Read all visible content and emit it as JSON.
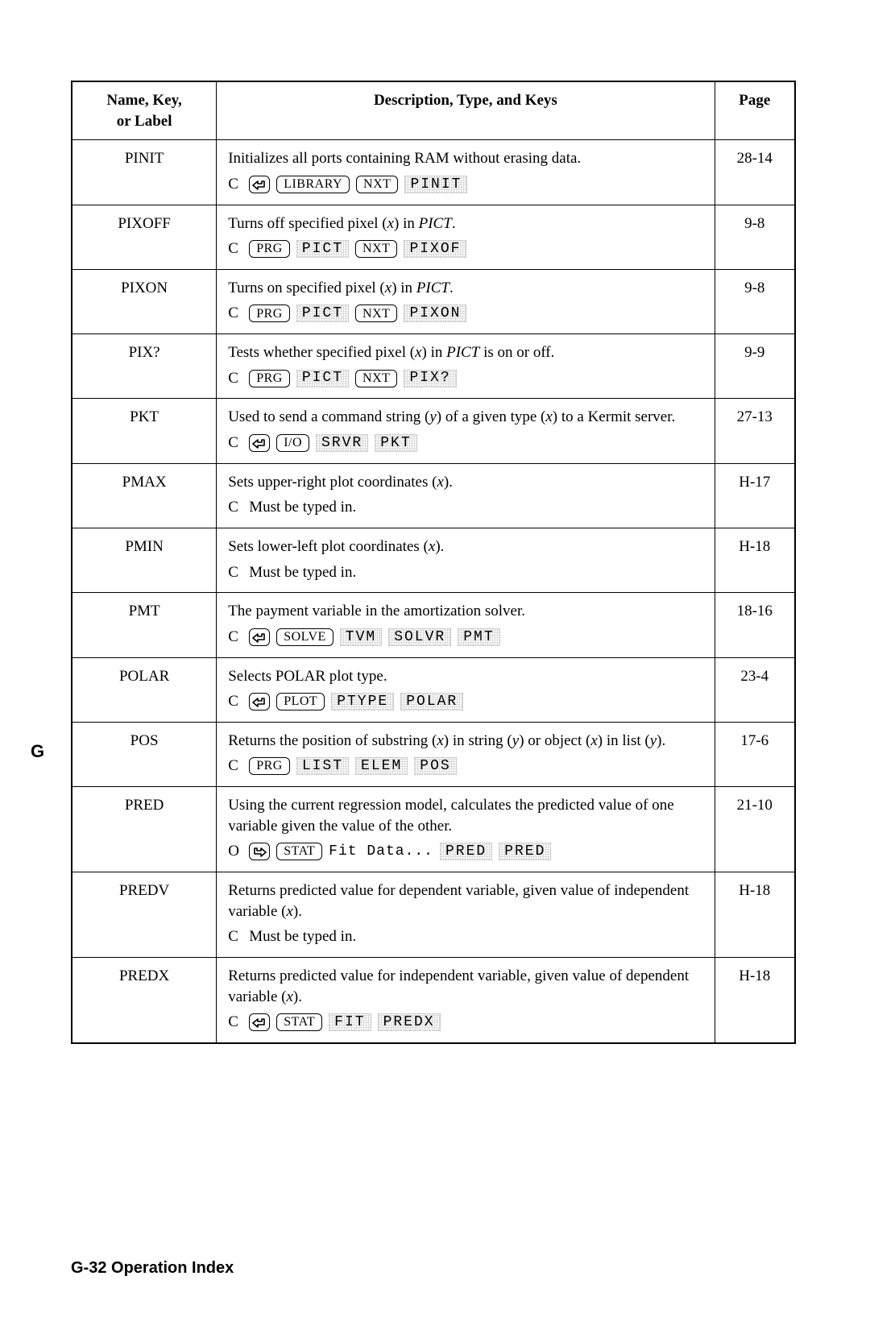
{
  "columns": {
    "name": "Name, Key,\nor Label",
    "desc": "Description, Type, and Keys",
    "page": "Page"
  },
  "side_tab": "G",
  "footer": "G-32   Operation Index",
  "rows": [
    {
      "name": "PINIT",
      "page": "28-14",
      "desc_segments": [
        {
          "t": "text",
          "v": "Initializes all ports containing RAM without erasing data."
        }
      ],
      "type": "C",
      "seq": [
        {
          "t": "shift",
          "dir": "left"
        },
        {
          "t": "hardkey",
          "v": "LIBRARY"
        },
        {
          "t": "hardkey",
          "v": "NXT"
        },
        {
          "t": "softkey",
          "v": "PINIT"
        }
      ]
    },
    {
      "name": "PIXOFF",
      "page": "9-8",
      "desc_segments": [
        {
          "t": "text",
          "v": "Turns off specified pixel ("
        },
        {
          "t": "ivar",
          "v": "x"
        },
        {
          "t": "text",
          "v": ") in "
        },
        {
          "t": "ital",
          "v": "PICT"
        },
        {
          "t": "text",
          "v": "."
        }
      ],
      "type": "C",
      "seq": [
        {
          "t": "hardkey",
          "v": "PRG"
        },
        {
          "t": "softkey",
          "v": "PICT"
        },
        {
          "t": "hardkey",
          "v": "NXT"
        },
        {
          "t": "softkey",
          "v": "PIXOF"
        }
      ]
    },
    {
      "name": "PIXON",
      "page": "9-8",
      "desc_segments": [
        {
          "t": "text",
          "v": "Turns on specified pixel ("
        },
        {
          "t": "ivar",
          "v": "x"
        },
        {
          "t": "text",
          "v": ") in "
        },
        {
          "t": "ital",
          "v": "PICT"
        },
        {
          "t": "text",
          "v": "."
        }
      ],
      "type": "C",
      "seq": [
        {
          "t": "hardkey",
          "v": "PRG"
        },
        {
          "t": "softkey",
          "v": "PICT"
        },
        {
          "t": "hardkey",
          "v": "NXT"
        },
        {
          "t": "softkey",
          "v": "PIXON"
        }
      ]
    },
    {
      "name": "PIX?",
      "page": "9-9",
      "desc_segments": [
        {
          "t": "text",
          "v": "Tests whether specified pixel ("
        },
        {
          "t": "ivar",
          "v": "x"
        },
        {
          "t": "text",
          "v": ") in "
        },
        {
          "t": "ital",
          "v": "PICT"
        },
        {
          "t": "text",
          "v": " is on or off."
        }
      ],
      "type": "C",
      "seq": [
        {
          "t": "hardkey",
          "v": "PRG"
        },
        {
          "t": "softkey",
          "v": "PICT"
        },
        {
          "t": "hardkey",
          "v": "NXT"
        },
        {
          "t": "softkey",
          "v": "PIX?"
        }
      ]
    },
    {
      "name": "PKT",
      "page": "27-13",
      "desc_segments": [
        {
          "t": "text",
          "v": "Used to send a command string ("
        },
        {
          "t": "ivar",
          "v": "y"
        },
        {
          "t": "text",
          "v": ") of a given type ("
        },
        {
          "t": "ivar",
          "v": "x"
        },
        {
          "t": "text",
          "v": ") to a Kermit server."
        }
      ],
      "type": "C",
      "seq": [
        {
          "t": "shift",
          "dir": "left"
        },
        {
          "t": "hardkey",
          "v": "I/O"
        },
        {
          "t": "softkey",
          "v": "SRVR"
        },
        {
          "t": "softkey",
          "v": "PKT"
        }
      ]
    },
    {
      "name": "PMAX",
      "page": "H-17",
      "desc_segments": [
        {
          "t": "text",
          "v": "Sets upper-right plot coordinates ("
        },
        {
          "t": "ivar",
          "v": "x"
        },
        {
          "t": "text",
          "v": ")."
        }
      ],
      "type": "C",
      "seq": [
        {
          "t": "plain",
          "v": "Must be typed in."
        }
      ]
    },
    {
      "name": "PMIN",
      "page": "H-18",
      "desc_segments": [
        {
          "t": "text",
          "v": "Sets lower-left plot coordinates ("
        },
        {
          "t": "ivar",
          "v": "x"
        },
        {
          "t": "text",
          "v": ")."
        }
      ],
      "type": "C",
      "seq": [
        {
          "t": "plain",
          "v": "Must be typed in."
        }
      ]
    },
    {
      "name": "PMT",
      "page": "18-16",
      "desc_segments": [
        {
          "t": "text",
          "v": "The payment variable in the amortization solver."
        }
      ],
      "type": "C",
      "seq": [
        {
          "t": "shift",
          "dir": "left"
        },
        {
          "t": "hardkey",
          "v": "SOLVE"
        },
        {
          "t": "softkey",
          "v": "TVM"
        },
        {
          "t": "softkey",
          "v": "SOLVR"
        },
        {
          "t": "softkey",
          "v": "PMT"
        }
      ]
    },
    {
      "name": "POLAR",
      "page": "23-4",
      "desc_segments": [
        {
          "t": "text",
          "v": "Selects POLAR plot type."
        }
      ],
      "type": "C",
      "seq": [
        {
          "t": "shift",
          "dir": "left"
        },
        {
          "t": "hardkey",
          "v": "PLOT"
        },
        {
          "t": "softkey",
          "v": "PTYPE"
        },
        {
          "t": "softkey",
          "v": "POLAR"
        }
      ]
    },
    {
      "name": "POS",
      "page": "17-6",
      "desc_segments": [
        {
          "t": "text",
          "v": "Returns the position of substring ("
        },
        {
          "t": "ivar",
          "v": "x"
        },
        {
          "t": "text",
          "v": ") in string ("
        },
        {
          "t": "ivar",
          "v": "y"
        },
        {
          "t": "text",
          "v": ") or object ("
        },
        {
          "t": "ivar",
          "v": "x"
        },
        {
          "t": "text",
          "v": ") in list ("
        },
        {
          "t": "ivar",
          "v": "y"
        },
        {
          "t": "text",
          "v": ")."
        }
      ],
      "type": "C",
      "seq": [
        {
          "t": "hardkey",
          "v": "PRG"
        },
        {
          "t": "softkey",
          "v": "LIST"
        },
        {
          "t": "softkey",
          "v": "ELEM"
        },
        {
          "t": "softkey",
          "v": "POS"
        }
      ]
    },
    {
      "name": "PRED",
      "page": "21-10",
      "desc_segments": [
        {
          "t": "text",
          "v": "Using the current regression model, calculates the predicted value of one variable given the value of the other."
        }
      ],
      "type": "O",
      "seq": [
        {
          "t": "shift",
          "dir": "right"
        },
        {
          "t": "hardkey",
          "v": "STAT"
        },
        {
          "t": "menutext",
          "v": "Fit Data..."
        },
        {
          "t": "softkey",
          "v": "PRED"
        },
        {
          "t": "softkey",
          "v": "PRED"
        }
      ]
    },
    {
      "name": "PREDV",
      "page": "H-18",
      "desc_segments": [
        {
          "t": "text",
          "v": "Returns predicted value for dependent variable, given value of independent variable ("
        },
        {
          "t": "ivar",
          "v": "x"
        },
        {
          "t": "text",
          "v": ")."
        }
      ],
      "type": "C",
      "seq": [
        {
          "t": "plain",
          "v": "Must be typed in."
        }
      ]
    },
    {
      "name": "PREDX",
      "page": "H-18",
      "desc_segments": [
        {
          "t": "text",
          "v": "Returns predicted value for independent variable, given value of dependent variable ("
        },
        {
          "t": "ivar",
          "v": "x"
        },
        {
          "t": "text",
          "v": ")."
        }
      ],
      "type": "C",
      "seq": [
        {
          "t": "shift",
          "dir": "left"
        },
        {
          "t": "hardkey",
          "v": "STAT"
        },
        {
          "t": "softkey",
          "v": "FIT"
        },
        {
          "t": "softkey",
          "v": "PREDX"
        }
      ]
    }
  ]
}
